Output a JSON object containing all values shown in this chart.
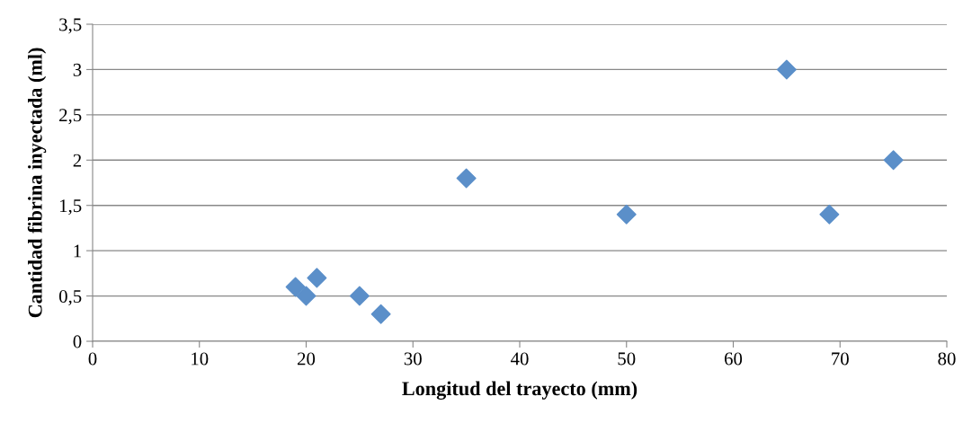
{
  "chart_data": {
    "type": "scatter",
    "xlabel": "Longitud del trayecto (mm)",
    "ylabel": "Cantidad fibrina inyectada (ml)",
    "x": [
      19,
      20,
      21,
      25,
      27,
      35,
      50,
      65,
      69,
      75
    ],
    "series": [
      {
        "color": "#5b8fc9",
        "values": [
          0.6,
          0.5,
          0.7,
          0.5,
          0.3,
          1.8,
          1.4,
          3.0,
          1.4,
          2.0
        ]
      }
    ],
    "xlim": [
      0,
      80
    ],
    "xticks": [
      0,
      10,
      20,
      30,
      40,
      50,
      60,
      70,
      80
    ],
    "ylim": [
      0,
      3.5
    ],
    "yticks": [
      0,
      {
        "value": 0.5,
        "label": "0,5"
      },
      1,
      {
        "value": 1.5,
        "label": "1,5"
      },
      2,
      {
        "value": 2.5,
        "label": "2,5"
      },
      3,
      {
        "value": 3.5,
        "label": "3,5"
      }
    ],
    "grid": "y",
    "marker": "diamond",
    "legend": false
  }
}
